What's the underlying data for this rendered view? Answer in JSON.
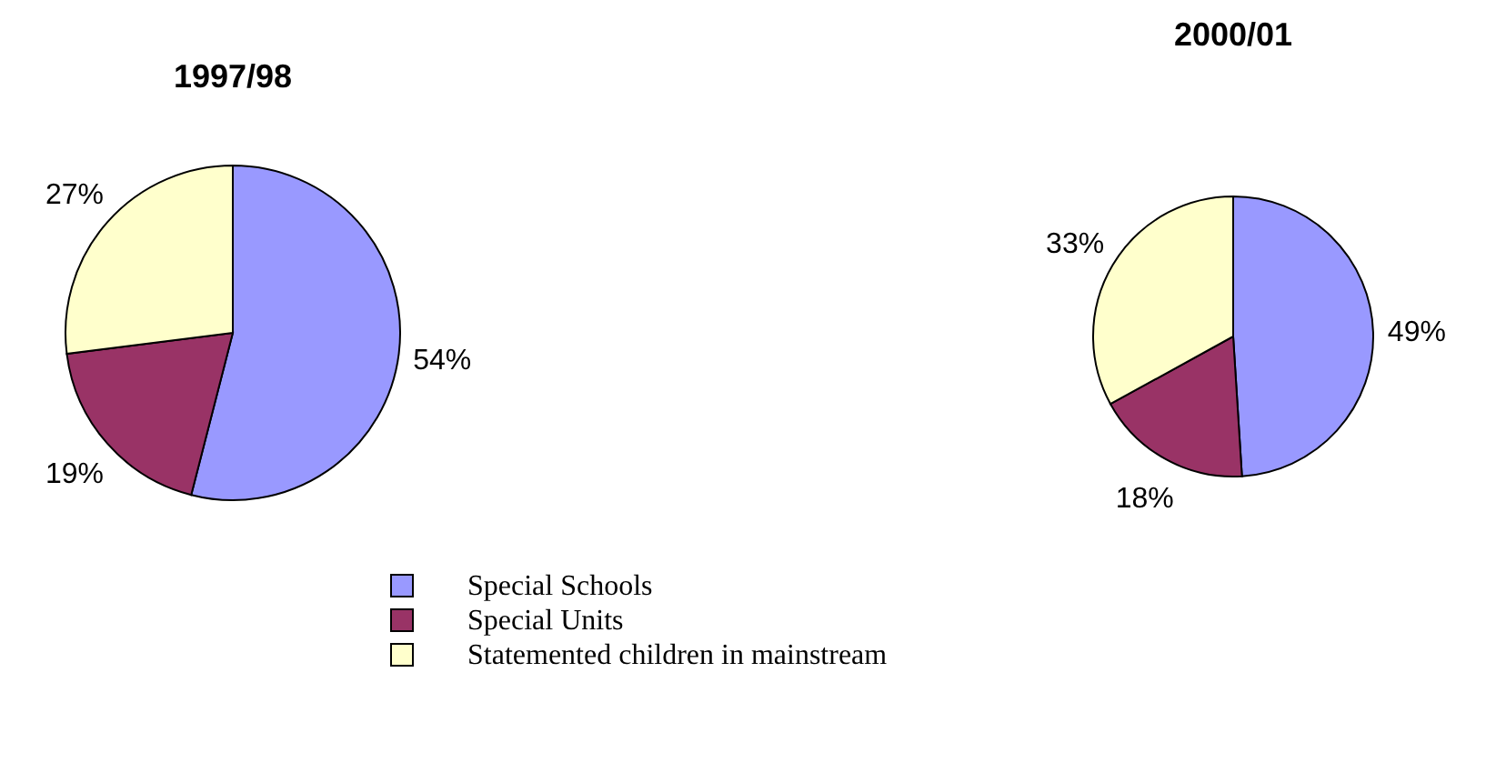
{
  "chart_data": [
    {
      "type": "pie",
      "title": "1997/98",
      "categories": [
        "Special Schools",
        "Special Units",
        "Statemented children in mainstream"
      ],
      "values": [
        54,
        19,
        27
      ],
      "value_labels": [
        "54%",
        "19%",
        "27%"
      ],
      "colors": [
        "#9999ff",
        "#993366",
        "#ffffcc"
      ],
      "legend": "bottom"
    },
    {
      "type": "pie",
      "title": "2000/01",
      "categories": [
        null,
        null,
        null
      ],
      "values": [
        49,
        18,
        33
      ],
      "value_labels": [
        "49%",
        "18%",
        "33%"
      ],
      "colors": [
        "#9999ff",
        "#993366",
        "#ffffcc"
      ]
    }
  ]
}
